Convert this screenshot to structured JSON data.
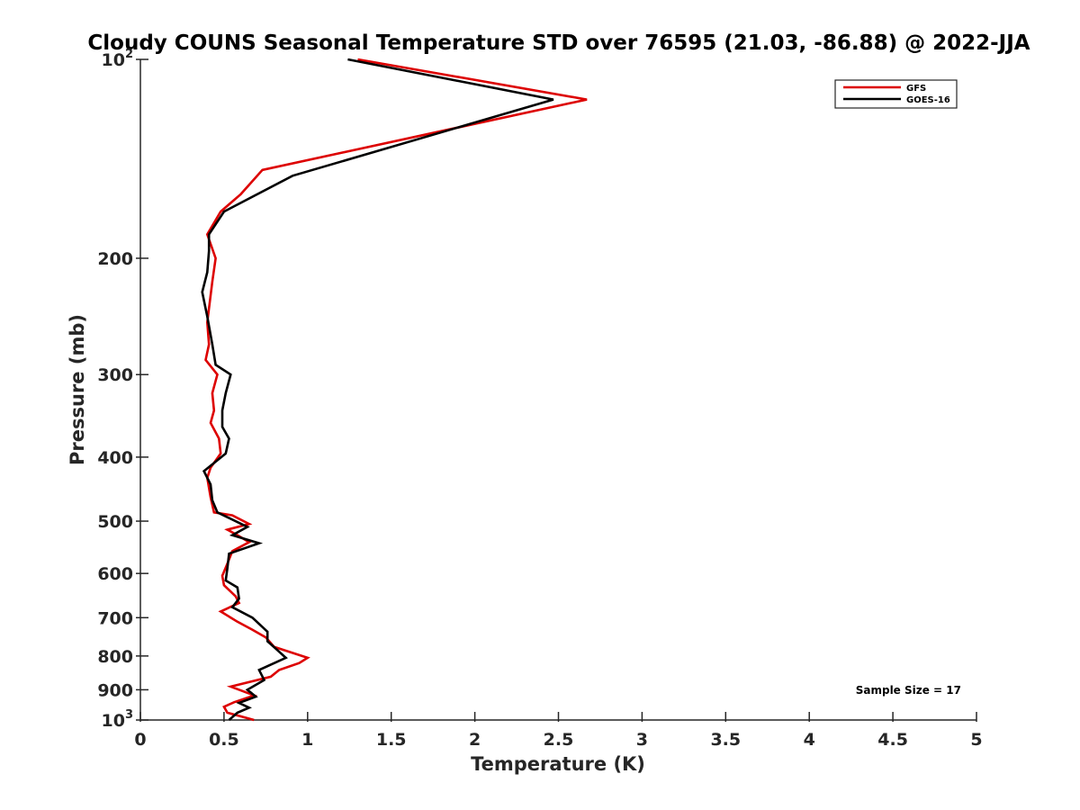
{
  "chart_data": {
    "type": "line",
    "title": "Cloudy COUNS Seasonal Temperature STD over 76595 (21.03, -86.88) @ 2022-JJA",
    "xlabel": "Temperature (K)",
    "ylabel": "Pressure (mb)",
    "xlim": [
      0,
      5
    ],
    "ylim": [
      100,
      1000
    ],
    "y_scale": "log",
    "y_reversed": true,
    "x_ticks": [
      0,
      0.5,
      1,
      1.5,
      2,
      2.5,
      3,
      3.5,
      4,
      4.5,
      5
    ],
    "x_tick_labels": [
      "0",
      "0.5",
      "1",
      "1.5",
      "2",
      "2.5",
      "3",
      "3.5",
      "4",
      "4.5",
      "5"
    ],
    "y_ticks": [
      {
        "value": 100,
        "base": "10",
        "exp": "2"
      },
      {
        "value": 200,
        "label": "200"
      },
      {
        "value": 300,
        "label": "300"
      },
      {
        "value": 400,
        "label": "400"
      },
      {
        "value": 500,
        "label": "500"
      },
      {
        "value": 600,
        "label": "600"
      },
      {
        "value": 700,
        "label": "700"
      },
      {
        "value": 800,
        "label": "800"
      },
      {
        "value": 900,
        "label": "900"
      },
      {
        "value": 1000,
        "base": "10",
        "exp": "3"
      }
    ],
    "legend_position": "top-right",
    "annotation": "Sample Size = 17",
    "series": [
      {
        "name": "GFS",
        "color": "#dd0000",
        "points": [
          [
            1.3,
            100
          ],
          [
            2.67,
            115
          ],
          [
            0.73,
            147
          ],
          [
            0.6,
            160
          ],
          [
            0.48,
            170
          ],
          [
            0.4,
            184
          ],
          [
            0.45,
            200
          ],
          [
            0.43,
            217
          ],
          [
            0.4,
            250
          ],
          [
            0.41,
            270
          ],
          [
            0.39,
            285
          ],
          [
            0.46,
            300
          ],
          [
            0.43,
            320
          ],
          [
            0.44,
            340
          ],
          [
            0.42,
            355
          ],
          [
            0.47,
            375
          ],
          [
            0.48,
            395
          ],
          [
            0.42,
            415
          ],
          [
            0.4,
            430
          ],
          [
            0.42,
            460
          ],
          [
            0.44,
            485
          ],
          [
            0.55,
            490
          ],
          [
            0.65,
            505
          ],
          [
            0.52,
            515
          ],
          [
            0.58,
            525
          ],
          [
            0.65,
            538
          ],
          [
            0.55,
            555
          ],
          [
            0.52,
            580
          ],
          [
            0.49,
            605
          ],
          [
            0.5,
            625
          ],
          [
            0.57,
            650
          ],
          [
            0.59,
            665
          ],
          [
            0.48,
            685
          ],
          [
            0.58,
            710
          ],
          [
            0.67,
            730
          ],
          [
            0.75,
            750
          ],
          [
            0.8,
            775
          ],
          [
            1.0,
            805
          ],
          [
            0.95,
            820
          ],
          [
            0.83,
            840
          ],
          [
            0.78,
            860
          ],
          [
            0.54,
            890
          ],
          [
            0.68,
            918
          ],
          [
            0.56,
            940
          ],
          [
            0.5,
            955
          ],
          [
            0.52,
            975
          ],
          [
            0.68,
            1000
          ]
        ]
      },
      {
        "name": "GOES-16",
        "color": "#000000",
        "points": [
          [
            1.24,
            100
          ],
          [
            2.47,
            115
          ],
          [
            0.91,
            150
          ],
          [
            0.5,
            170
          ],
          [
            0.41,
            184
          ],
          [
            0.41,
            195
          ],
          [
            0.4,
            210
          ],
          [
            0.37,
            225
          ],
          [
            0.4,
            245
          ],
          [
            0.43,
            270
          ],
          [
            0.45,
            290
          ],
          [
            0.54,
            300
          ],
          [
            0.51,
            320
          ],
          [
            0.49,
            340
          ],
          [
            0.49,
            360
          ],
          [
            0.53,
            375
          ],
          [
            0.51,
            395
          ],
          [
            0.38,
            420
          ],
          [
            0.42,
            440
          ],
          [
            0.43,
            465
          ],
          [
            0.46,
            485
          ],
          [
            0.64,
            510
          ],
          [
            0.55,
            525
          ],
          [
            0.71,
            540
          ],
          [
            0.53,
            560
          ],
          [
            0.52,
            590
          ],
          [
            0.51,
            615
          ],
          [
            0.58,
            630
          ],
          [
            0.59,
            655
          ],
          [
            0.55,
            675
          ],
          [
            0.67,
            700
          ],
          [
            0.76,
            735
          ],
          [
            0.76,
            760
          ],
          [
            0.81,
            780
          ],
          [
            0.87,
            805
          ],
          [
            0.71,
            840
          ],
          [
            0.74,
            870
          ],
          [
            0.64,
            900
          ],
          [
            0.69,
            922
          ],
          [
            0.59,
            942
          ],
          [
            0.65,
            958
          ],
          [
            0.58,
            975
          ],
          [
            0.53,
            1000
          ]
        ]
      }
    ]
  }
}
